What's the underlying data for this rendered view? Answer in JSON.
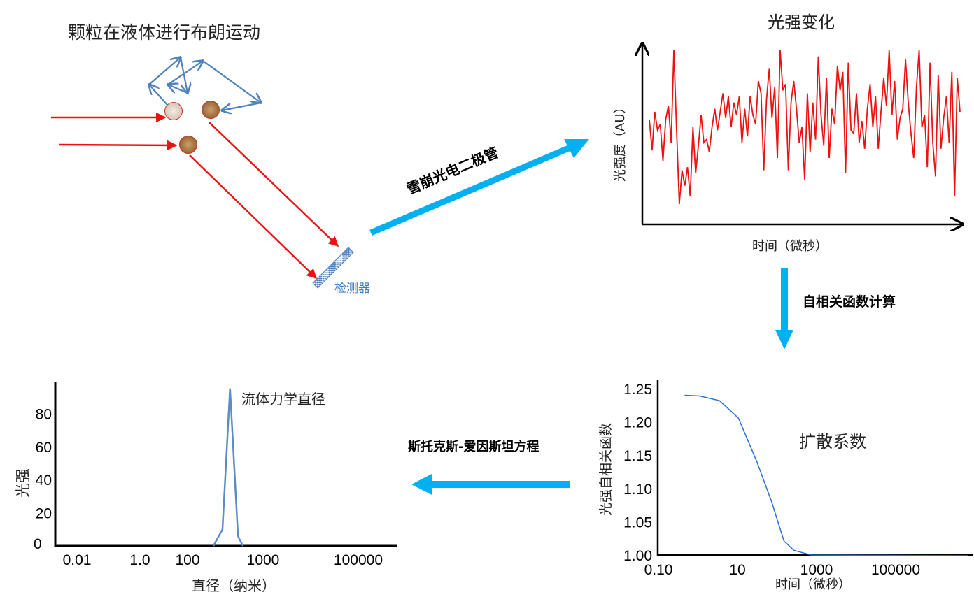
{
  "title_brownian": "颗粒在液体进行布朗运动",
  "detector_label": "检测器",
  "apd_label": "雪崩光电二极管",
  "autocorr_label": "自相关函数计算",
  "stokes_label": "斯托克斯-爱因斯坦方程",
  "colors": {
    "laser": "#ee1111",
    "motion": "#4f81bd",
    "flow_arrow": "#00b0f0",
    "signal": "#ee1111",
    "curve": "#2a6fd6",
    "size_curve": "#5b8cc8"
  },
  "chart_data": [
    {
      "type": "line",
      "title": "光强变化",
      "ylabel": "光强度（AU）",
      "xlabel": "时间（微秒）",
      "ylim": [
        0,
        100
      ],
      "values": [
        55,
        35,
        60,
        48,
        52,
        28,
        55,
        64,
        40,
        100,
        48,
        0,
        22,
        12,
        24,
        5,
        50,
        20,
        38,
        58,
        40,
        42,
        34,
        50,
        62,
        48,
        60,
        72,
        56,
        70,
        50,
        66,
        58,
        70,
        40,
        62,
        44,
        70,
        58,
        52,
        80,
        72,
        22,
        68,
        88,
        56,
        76,
        30,
        100,
        74,
        78,
        22,
        66,
        80,
        62,
        40,
        50,
        16,
        72,
        34,
        66,
        42,
        96,
        58,
        38,
        82,
        30,
        62,
        52,
        90,
        74,
        86,
        20,
        92,
        48,
        46,
        72,
        40,
        54,
        36,
        62,
        78,
        50,
        70,
        36,
        60,
        82,
        64,
        100,
        58,
        80,
        42,
        56,
        62,
        94,
        66,
        46,
        30,
        76,
        100,
        50,
        58,
        24,
        92,
        40,
        18,
        84,
        36,
        56,
        70,
        40,
        86,
        5,
        82,
        60
      ]
    },
    {
      "type": "line",
      "ylabel": "光强自相关函数",
      "xlabel": "时间（微秒）",
      "annotation": "扩散系数",
      "xscale": "log",
      "xticks": [
        "0.10",
        "10",
        "1000",
        "100000"
      ],
      "yticks": [
        "1.00",
        "1.05",
        "1.10",
        "1.15",
        "1.20",
        "1.25"
      ],
      "ylim": [
        1.0,
        1.25
      ],
      "x": [
        0.46,
        1.1,
        3.5,
        10.5,
        31,
        73,
        150,
        267,
        730,
        6800000
      ],
      "y": [
        1.24,
        1.239,
        1.232,
        1.206,
        1.14,
        1.08,
        1.021,
        1.007,
        1.0,
        0.999
      ]
    },
    {
      "type": "line",
      "ylabel": "光强",
      "xlabel": "直径（纳米）",
      "annotation": "流体力学直径",
      "xticks": [
        "0.01",
        "1.0",
        "100",
        "1000",
        "100000"
      ],
      "yticks": [
        "0",
        "20",
        "40",
        "60",
        "80"
      ],
      "ylim": [
        0,
        95
      ],
      "x": [
        220,
        290,
        365,
        465,
        540
      ],
      "y": [
        0,
        10,
        95,
        6,
        0
      ]
    }
  ]
}
